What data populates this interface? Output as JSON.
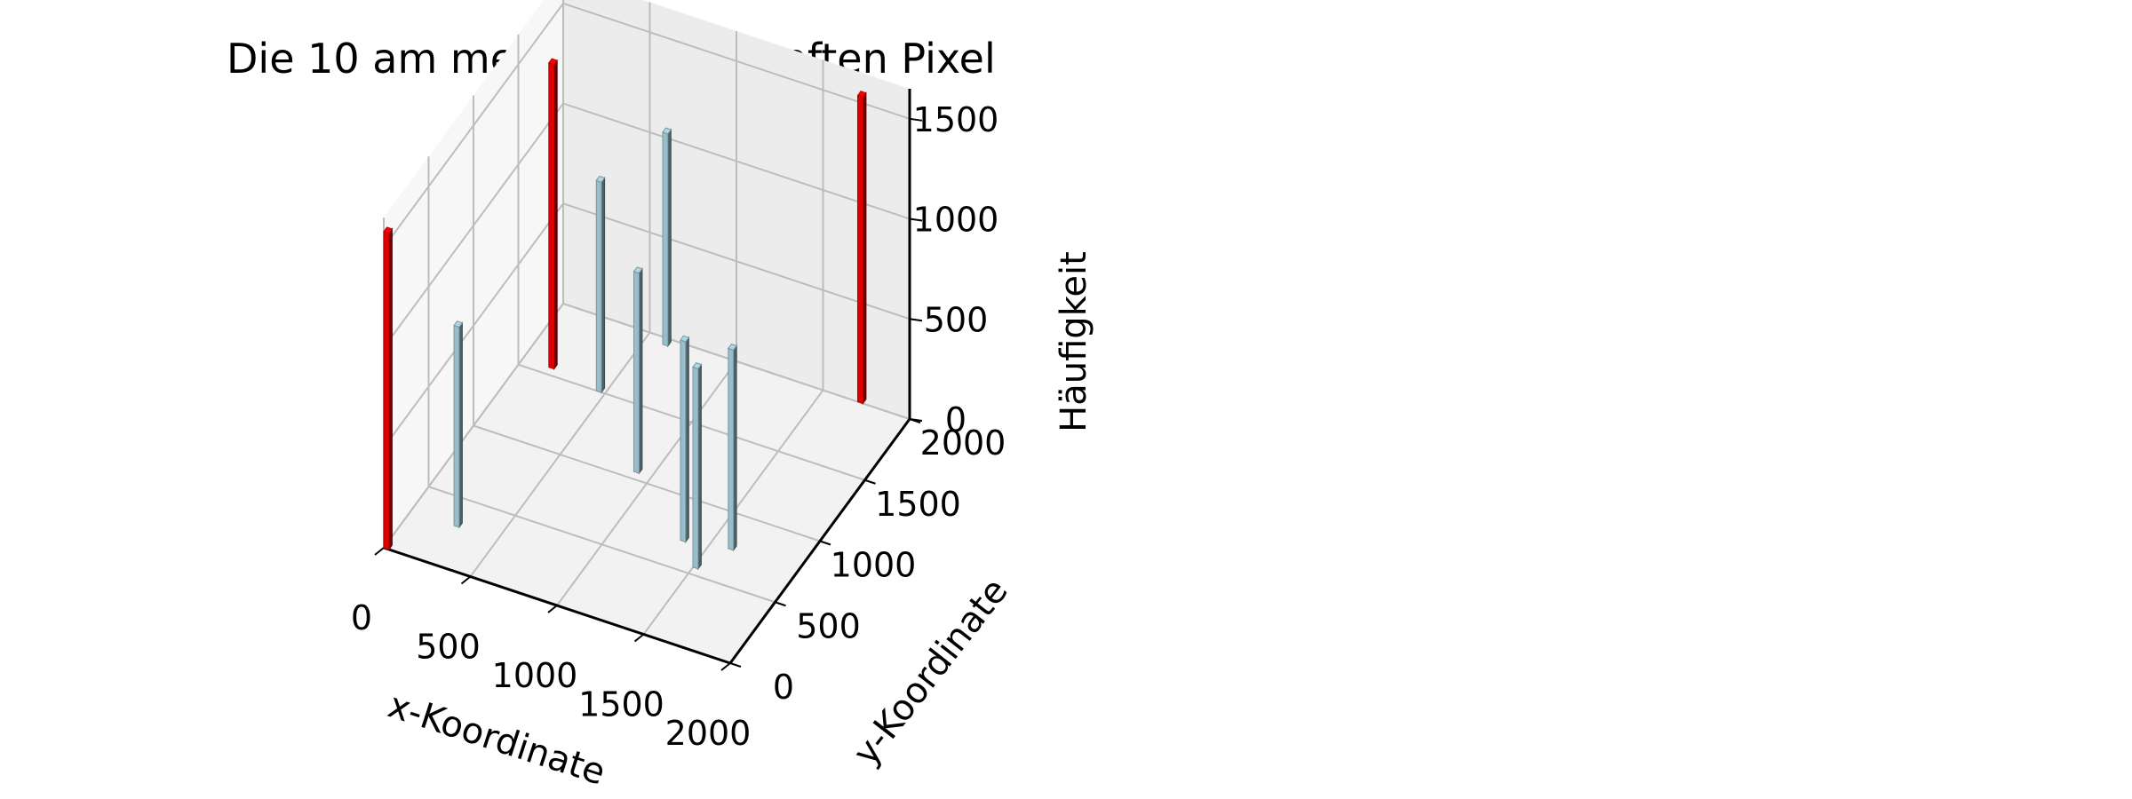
{
  "chart_data": {
    "type": "bar3d",
    "title": "Die 10 am meisten umkämpften Pixel",
    "xlabel": "x-Koordinate",
    "ylabel": "y-Koordinate",
    "zlabel": "Häufigkeit",
    "xlim": [
      0,
      2000
    ],
    "ylim": [
      0,
      2000
    ],
    "zlim": [
      0,
      1500
    ],
    "xticks": [
      "0",
      "500",
      "1000",
      "1500",
      "2000"
    ],
    "yticks": [
      "0",
      "500",
      "1000",
      "1500",
      "2000"
    ],
    "zticks": [
      "0",
      "500",
      "1000",
      "1500"
    ],
    "grid": true,
    "colors": {
      "highlight": "#ff0000",
      "normal": "#add8e6"
    },
    "bars": [
      {
        "x": 0,
        "y": 0,
        "z": 1580,
        "highlight": true
      },
      {
        "x": 150,
        "y": 1550,
        "z": 1520,
        "highlight": true
      },
      {
        "x": 1700,
        "y": 2000,
        "z": 1530,
        "highlight": true
      },
      {
        "x": 450,
        "y": 1500,
        "z": 1050,
        "highlight": false
      },
      {
        "x": 600,
        "y": 1950,
        "z": 1060,
        "highlight": false
      },
      {
        "x": 250,
        "y": 300,
        "z": 1000,
        "highlight": false
      },
      {
        "x": 900,
        "y": 1050,
        "z": 1000,
        "highlight": false
      },
      {
        "x": 1350,
        "y": 700,
        "z": 1000,
        "highlight": false
      },
      {
        "x": 1600,
        "y": 750,
        "z": 1000,
        "highlight": false
      },
      {
        "x": 1500,
        "y": 550,
        "z": 1000,
        "highlight": false
      }
    ]
  }
}
